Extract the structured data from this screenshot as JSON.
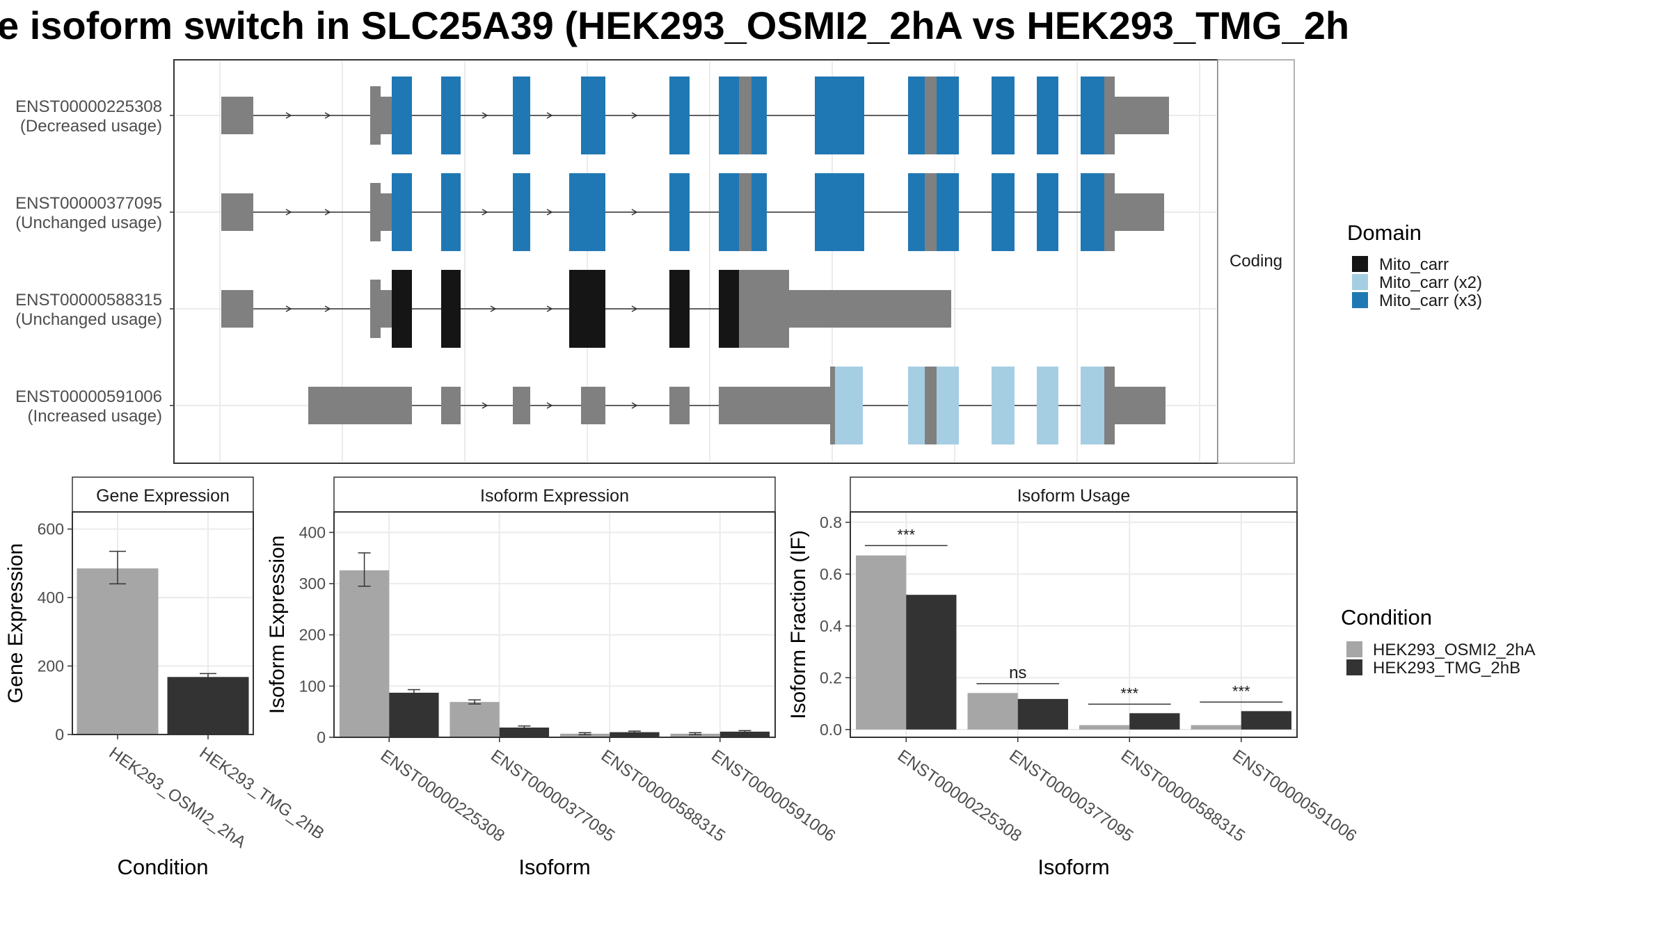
{
  "title": "e isoform switch in SLC25A39 (HEK293_OSMI2_2hA vs HEK293_TMG_2h",
  "colors": {
    "noncoding": "#808080",
    "mito_carr": "#151515",
    "mito_carr_x2": "#a6cee3",
    "mito_carr_x3": "#1f78b4",
    "cond_a": "#a6a6a6",
    "cond_b": "#333333"
  },
  "structure": {
    "strip_label": "Coding",
    "isoforms": [
      {
        "id": "ENST00000225308",
        "usage": "(Decreased usage)"
      },
      {
        "id": "ENST00000377095",
        "usage": "(Unchanged usage)"
      },
      {
        "id": "ENST00000588315",
        "usage": "(Unchanged usage)"
      },
      {
        "id": "ENST00000591006",
        "usage": "(Increased usage)"
      }
    ]
  },
  "legend_domain": {
    "title": "Domain",
    "items": [
      {
        "label": "Mito_carr",
        "color": "#151515"
      },
      {
        "label": "Mito_carr (x2)",
        "color": "#a6cee3"
      },
      {
        "label": "Mito_carr (x3)",
        "color": "#1f78b4"
      }
    ]
  },
  "legend_condition": {
    "title": "Condition",
    "items": [
      {
        "label": "HEK293_OSMI2_2hA",
        "color": "#a6a6a6"
      },
      {
        "label": "HEK293_TMG_2hB",
        "color": "#333333"
      }
    ]
  },
  "chart_data": [
    {
      "type": "bar",
      "title": "Gene Expression",
      "xlabel": "Condition",
      "ylabel": "Gene Expression",
      "categories": [
        "HEK293_OSMI2_2hA",
        "HEK293_TMG_2hB"
      ],
      "values": [
        485,
        168
      ],
      "error_bars": [
        [
          440,
          535
        ],
        [
          160,
          178
        ]
      ],
      "yticks": [
        0,
        200,
        400,
        600
      ],
      "ylim": [
        0,
        650
      ]
    },
    {
      "type": "bar",
      "title": "Isoform Expression",
      "xlabel": "Isoform",
      "ylabel": "Isoform Expression",
      "categories": [
        "ENST00000225308",
        "ENST00000377095",
        "ENST00000588315",
        "ENST00000591006"
      ],
      "series": [
        {
          "name": "HEK293_OSMI2_2hA",
          "values": [
            326,
            69,
            7,
            7
          ],
          "error_bars": [
            [
              295,
              360
            ],
            [
              65,
              73
            ],
            [
              5,
              9
            ],
            [
              5,
              9
            ]
          ]
        },
        {
          "name": "HEK293_TMG_2hB",
          "values": [
            87,
            19,
            10,
            11
          ],
          "error_bars": [
            [
              82,
              93
            ],
            [
              17,
              22
            ],
            [
              9,
              12
            ],
            [
              10,
              13
            ]
          ]
        }
      ],
      "yticks": [
        0,
        100,
        200,
        300,
        400
      ],
      "ylim": [
        0,
        440
      ]
    },
    {
      "type": "bar",
      "title": "Isoform Usage",
      "xlabel": "Isoform",
      "ylabel": "Isoform Fraction (IF)",
      "categories": [
        "ENST00000225308",
        "ENST00000377095",
        "ENST00000588315",
        "ENST00000591006"
      ],
      "series": [
        {
          "name": "HEK293_OSMI2_2hA",
          "values": [
            0.672,
            0.141,
            0.017,
            0.017
          ]
        },
        {
          "name": "HEK293_TMG_2hB",
          "values": [
            0.52,
            0.118,
            0.063,
            0.071
          ]
        }
      ],
      "significance": [
        "***",
        "ns",
        "***",
        "***"
      ],
      "sig_y": [
        0.71,
        0.177,
        0.098,
        0.106
      ],
      "yticks": [
        "0.0",
        "0.2",
        "0.4",
        "0.6",
        "0.8"
      ],
      "ylim": [
        -0.03,
        0.84
      ]
    }
  ]
}
